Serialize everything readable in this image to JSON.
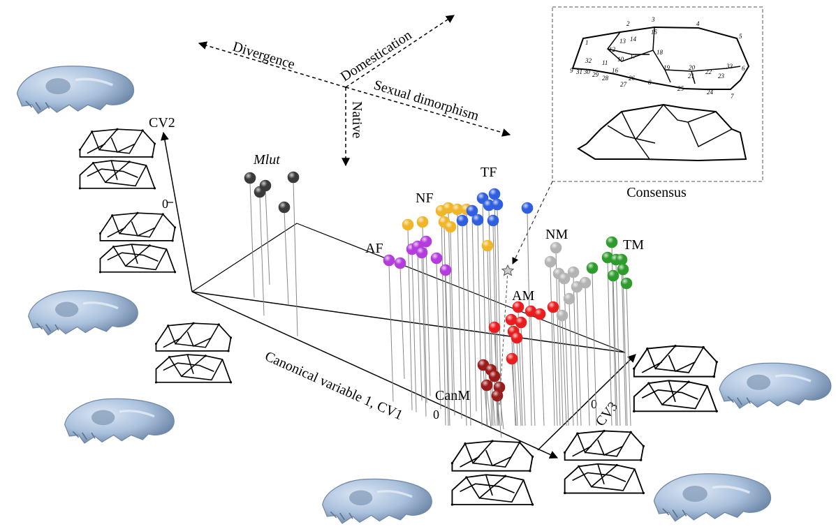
{
  "figure": {
    "directions": {
      "divergence": "Divergence",
      "domestication": "Domestication",
      "sexual_dimorphism": "Sexual dimorphism",
      "native": "Native"
    },
    "inset_label": "Consensus",
    "landmark_numbers": [
      "1",
      "2",
      "3",
      "4",
      "5",
      "6",
      "7",
      "8",
      "9",
      "10",
      "11",
      "12",
      "13",
      "14",
      "15",
      "16",
      "17",
      "18",
      "19",
      "20",
      "21",
      "22",
      "23",
      "24",
      "25",
      "26",
      "27",
      "28",
      "29",
      "30",
      "31",
      "32",
      "33"
    ],
    "skull_color": "#a9c0dc",
    "wireframe_color": "#000000"
  },
  "chart_data": {
    "type": "scatter",
    "dimensions": 3,
    "axes": {
      "x": {
        "label": "Canonical variable 1, CV1",
        "zero_label": "0"
      },
      "y": {
        "label": "CV2",
        "zero_label": "0"
      },
      "z": {
        "label": "CV3",
        "zero_label": "0"
      }
    },
    "consensus_marker": "star",
    "series": [
      {
        "name": "Mlut",
        "color": "#3a3a3a",
        "points": [
          [
            358,
            255,
            15
          ],
          [
            372,
            275,
            10
          ],
          [
            380,
            266,
            22
          ],
          [
            407,
            297,
            18
          ],
          [
            420,
            254,
            8
          ]
        ]
      },
      {
        "name": "AF",
        "color": "#b43bdc",
        "points": [
          [
            557,
            373,
            0
          ],
          [
            573,
            377,
            10
          ],
          [
            590,
            357,
            0
          ],
          [
            598,
            353,
            5
          ],
          [
            604,
            362,
            0
          ],
          [
            610,
            346,
            8
          ],
          [
            625,
            370,
            5
          ],
          [
            638,
            387,
            0
          ]
        ]
      },
      {
        "name": "NF",
        "color": "#f0b62a",
        "points": [
          [
            584,
            322,
            0
          ],
          [
            605,
            318,
            5
          ],
          [
            632,
            302,
            0
          ],
          [
            642,
            298,
            10
          ],
          [
            655,
            300,
            5
          ],
          [
            636,
            318,
            0
          ],
          [
            645,
            325,
            5
          ],
          [
            668,
            300,
            0
          ],
          [
            698,
            352,
            0
          ]
        ]
      },
      {
        "name": "TF",
        "color": "#2f5fe0",
        "points": [
          [
            662,
            316,
            0
          ],
          [
            676,
            302,
            10
          ],
          [
            684,
            315,
            5
          ],
          [
            691,
            284,
            0
          ],
          [
            700,
            294,
            5
          ],
          [
            708,
            278,
            0
          ],
          [
            712,
            293,
            5
          ],
          [
            706,
            316,
            0
          ],
          [
            755,
            298,
            0
          ]
        ]
      },
      {
        "name": "NM",
        "color": "#b3b3b3",
        "points": [
          [
            796,
            355,
            0
          ],
          [
            788,
            375,
            5
          ],
          [
            800,
            392,
            0
          ],
          [
            808,
            399,
            10
          ],
          [
            821,
            390,
            5
          ],
          [
            826,
            411,
            0
          ],
          [
            838,
            405,
            5
          ],
          [
            815,
            428,
            0
          ],
          [
            805,
            452,
            0
          ]
        ]
      },
      {
        "name": "TM",
        "color": "#2d9c2d",
        "points": [
          [
            876,
            347,
            0
          ],
          [
            870,
            369,
            5
          ],
          [
            882,
            372,
            0
          ],
          [
            890,
            372,
            5
          ],
          [
            892,
            386,
            0
          ],
          [
            878,
            395,
            5
          ],
          [
            897,
            406,
            0
          ],
          [
            848,
            384,
            0
          ]
        ]
      },
      {
        "name": "AM",
        "color": "#e81e1e",
        "points": [
          [
            742,
            440,
            0
          ],
          [
            760,
            446,
            5
          ],
          [
            773,
            450,
            0
          ],
          [
            792,
            440,
            0
          ],
          [
            732,
            458,
            10
          ],
          [
            746,
            462,
            5
          ],
          [
            735,
            475,
            0
          ],
          [
            740,
            484,
            5
          ],
          [
            708,
            469,
            0
          ],
          [
            733,
            514,
            0
          ]
        ]
      },
      {
        "name": "CanM",
        "color": "#9b1a1a",
        "points": [
          [
            692,
            523,
            0
          ],
          [
            703,
            530,
            5
          ],
          [
            708,
            539,
            0
          ],
          [
            697,
            552,
            5
          ],
          [
            715,
            555,
            0
          ],
          [
            712,
            567,
            5
          ]
        ]
      }
    ]
  }
}
